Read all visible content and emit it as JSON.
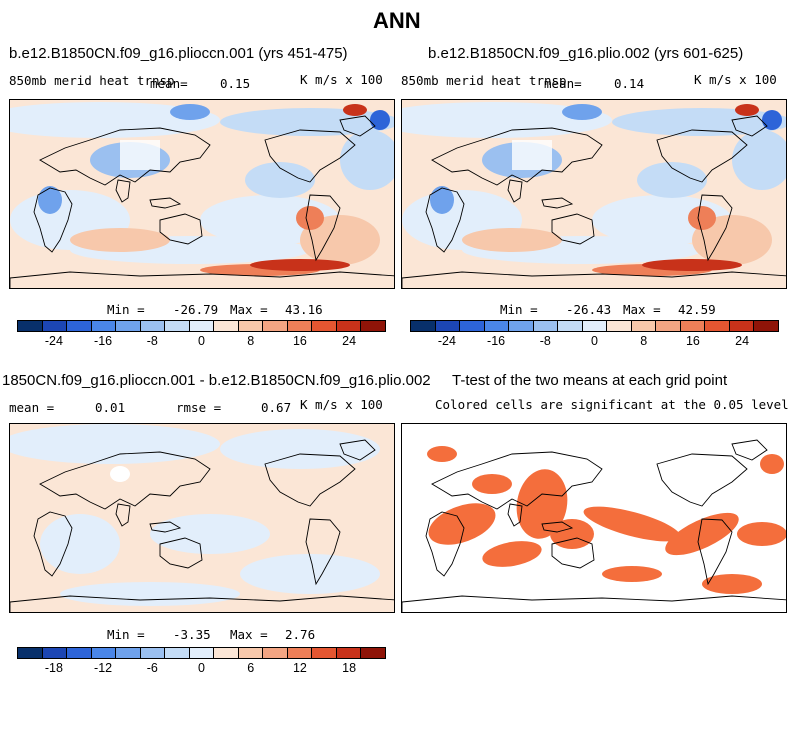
{
  "figure_title": "ANN",
  "colors": {
    "scale_main": [
      "#08306b",
      "#1c46b4",
      "#2d64d8",
      "#4a86e8",
      "#6fa2ec",
      "#9bc0f0",
      "#c4dcf6",
      "#e2eefb",
      "#fbe6d6",
      "#f7c8ab",
      "#f3a583",
      "#ee7f58",
      "#e45631",
      "#c8321a",
      "#8f1408"
    ],
    "scale_diff": [
      "#08306b",
      "#1c46b4",
      "#2d64d8",
      "#4a86e8",
      "#6fa2ec",
      "#9bc0f0",
      "#c4dcf6",
      "#e2eefb",
      "#fbe6d6",
      "#f7c8ab",
      "#f3a583",
      "#ee7f58",
      "#e45631",
      "#c8321a",
      "#8f1408"
    ],
    "significant": "#f46e3c",
    "land_line": "#000000"
  },
  "chart_data": [
    {
      "type": "heatmap",
      "title": "b.e12.B1850CN.f09_g16.plioccn.001 (yrs 451-475)",
      "left_label": "850mb merid heat trnsp",
      "mean_label": "mean=",
      "mean_value": "0.15",
      "units": "K m/s x 100",
      "stats": {
        "min_label": "Min =",
        "min": "-26.79",
        "max_label": "Max =",
        "max": "43.16"
      },
      "colorbar_ticks": [
        "-24",
        "-16",
        "-8",
        "0",
        "8",
        "16",
        "24"
      ]
    },
    {
      "type": "heatmap",
      "title": "b.e12.B1850CN.f09_g16.plio.002 (yrs 601-625)",
      "left_label": "850mb merid heat trnsp",
      "mean_label": "mean=",
      "mean_value": "0.14",
      "units": "K m/s x 100",
      "stats": {
        "min_label": "Min =",
        "min": "-26.43",
        "max_label": "Max =",
        "max": "42.59"
      },
      "colorbar_ticks": [
        "-24",
        "-16",
        "-8",
        "0",
        "8",
        "16",
        "24"
      ]
    },
    {
      "type": "heatmap",
      "title": "1850CN.f09_g16.plioccn.001 - b.e12.B1850CN.f09_g16.plio.002",
      "mean_label": "mean =",
      "mean_value": "0.01",
      "rmse_label": "rmse =",
      "rmse_value": "0.67",
      "units": "K m/s x 100",
      "stats": {
        "min_label": "Min =",
        "min": "-3.35",
        "max_label": "Max =",
        "max": "2.76"
      },
      "colorbar_ticks": [
        "-18",
        "-12",
        "-6",
        "0",
        "6",
        "12",
        "18"
      ]
    },
    {
      "type": "heatmap",
      "title": "T-test of the two means at each grid point",
      "note": "Colored cells are significant at the 0.05 level"
    }
  ]
}
